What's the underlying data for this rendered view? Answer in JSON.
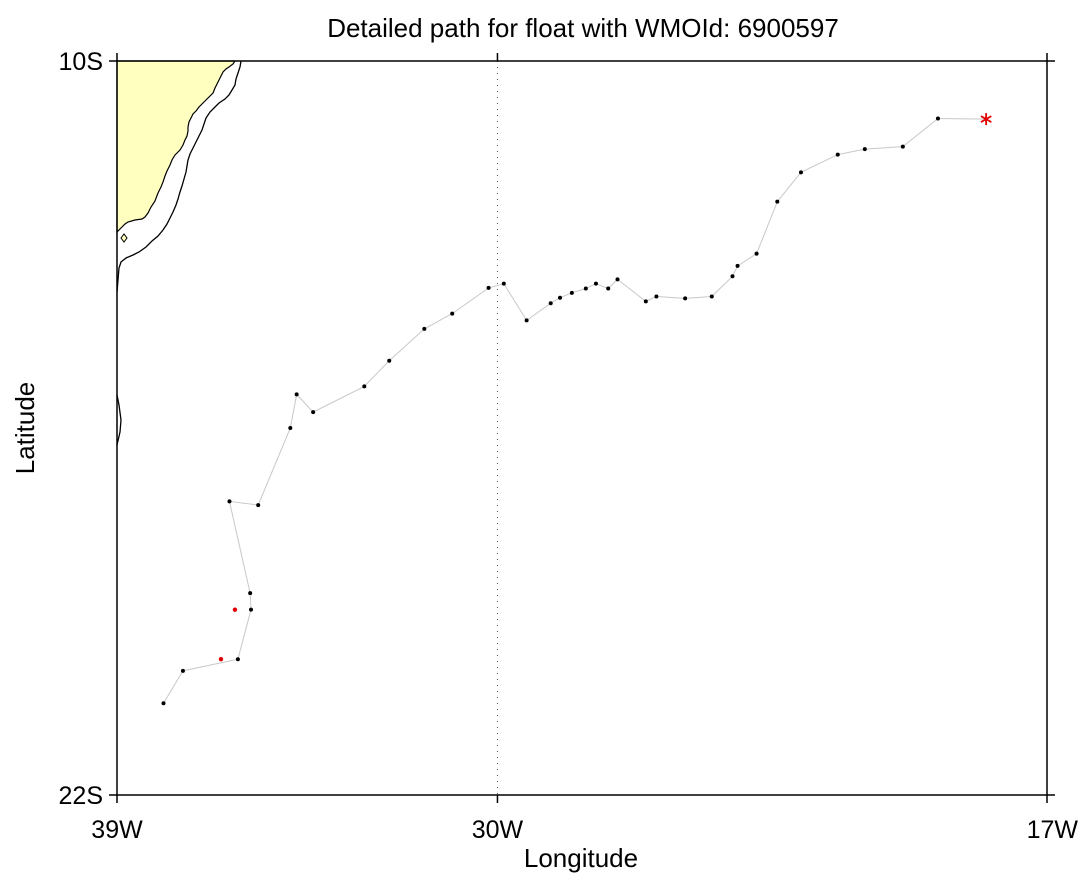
{
  "title": "Detailed path for float with WMOId: 6900597",
  "xlabel": "Longitude",
  "ylabel": "Latitude",
  "x_ticks": [
    {
      "value": -39,
      "label": "39W"
    },
    {
      "value": -30,
      "label": "30W"
    },
    {
      "value": -17,
      "label": "17W"
    }
  ],
  "y_ticks": [
    {
      "value": -10,
      "label": "10S"
    },
    {
      "value": -22,
      "label": "22S"
    }
  ],
  "colors": {
    "land": "#ffffc0",
    "path": "#c8c8c8",
    "point": "#000000",
    "highlight": "#e00000",
    "gridline": "#555555"
  },
  "chart_data": {
    "type": "scatter",
    "xlim": [
      -39,
      -17
    ],
    "ylim": [
      -22,
      -10
    ],
    "reference_line_lon": -30,
    "track": [
      {
        "lon": -37.9,
        "lat": -20.5
      },
      {
        "lon": -37.44,
        "lat": -19.97
      },
      {
        "lon": -36.14,
        "lat": -19.78
      },
      {
        "lon": -35.83,
        "lat": -18.97
      },
      {
        "lon": -35.85,
        "lat": -18.7
      },
      {
        "lon": -36.34,
        "lat": -17.2
      },
      {
        "lon": -35.66,
        "lat": -17.26
      },
      {
        "lon": -34.9,
        "lat": -16.0
      },
      {
        "lon": -34.75,
        "lat": -15.45
      },
      {
        "lon": -34.36,
        "lat": -15.74
      },
      {
        "lon": -33.15,
        "lat": -15.32
      },
      {
        "lon": -32.56,
        "lat": -14.9
      },
      {
        "lon": -31.73,
        "lat": -14.38
      },
      {
        "lon": -31.07,
        "lat": -14.13
      },
      {
        "lon": -30.21,
        "lat": -13.71
      },
      {
        "lon": -29.85,
        "lat": -13.64
      },
      {
        "lon": -29.31,
        "lat": -14.24
      },
      {
        "lon": -28.74,
        "lat": -13.96
      },
      {
        "lon": -28.52,
        "lat": -13.87
      },
      {
        "lon": -28.24,
        "lat": -13.79
      },
      {
        "lon": -27.91,
        "lat": -13.72
      },
      {
        "lon": -27.67,
        "lat": -13.64
      },
      {
        "lon": -27.38,
        "lat": -13.72
      },
      {
        "lon": -27.16,
        "lat": -13.57
      },
      {
        "lon": -26.49,
        "lat": -13.93
      },
      {
        "lon": -26.24,
        "lat": -13.85
      },
      {
        "lon": -25.56,
        "lat": -13.88
      },
      {
        "lon": -24.93,
        "lat": -13.85
      },
      {
        "lon": -24.44,
        "lat": -13.52
      },
      {
        "lon": -24.32,
        "lat": -13.35
      },
      {
        "lon": -23.87,
        "lat": -13.15
      },
      {
        "lon": -23.38,
        "lat": -12.3
      },
      {
        "lon": -22.82,
        "lat": -11.82
      },
      {
        "lon": -21.95,
        "lat": -11.53
      },
      {
        "lon": -21.31,
        "lat": -11.44
      },
      {
        "lon": -20.41,
        "lat": -11.4
      },
      {
        "lon": -19.58,
        "lat": -10.94
      },
      {
        "lon": -18.44,
        "lat": -10.95
      }
    ],
    "highlighted_points": [
      {
        "lon": -36.54,
        "lat": -19.78
      },
      {
        "lon": -36.21,
        "lat": -18.97
      }
    ],
    "latest_position": {
      "lon": -18.44,
      "lat": -10.95,
      "marker": "asterisk"
    }
  }
}
